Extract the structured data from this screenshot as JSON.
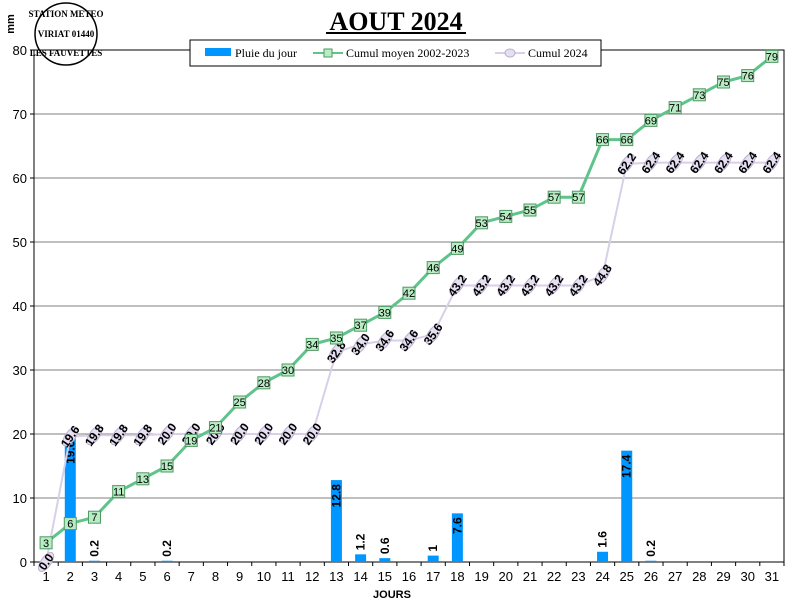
{
  "logo": {
    "line_top": "STATION METEO",
    "line_mid": "VIRIAT 01440",
    "line_bottom": "LES FAUVETTES"
  },
  "chart_data": {
    "type": "bar",
    "title": "AOUT 2024",
    "xlabel": "JOURS",
    "ylabel": "mm",
    "ylim": [
      0,
      80
    ],
    "yticks": [
      0,
      10,
      20,
      30,
      40,
      50,
      60,
      70,
      80
    ],
    "grid": true,
    "legend_position": "top",
    "categories": [
      "1",
      "2",
      "3",
      "4",
      "5",
      "6",
      "7",
      "8",
      "9",
      "10",
      "11",
      "12",
      "13",
      "14",
      "15",
      "16",
      "17",
      "18",
      "19",
      "20",
      "21",
      "22",
      "23",
      "24",
      "25",
      "26",
      "27",
      "28",
      "29",
      "30",
      "31"
    ],
    "series": [
      {
        "name": "Pluie du jour",
        "type": "bar",
        "color": "#0096ff",
        "values": [
          0,
          19.6,
          0.2,
          0,
          0,
          0.2,
          0,
          0,
          0,
          0,
          0,
          0,
          12.8,
          1.2,
          0.6,
          0,
          1,
          7.6,
          0,
          0,
          0,
          0,
          0,
          1.6,
          17.4,
          0.2,
          0,
          0,
          0,
          0,
          0
        ],
        "labels": [
          "",
          "19.6",
          "0.2",
          "",
          "",
          "0.2",
          "",
          "",
          "",
          "",
          "",
          "",
          "12.8",
          "1.2",
          "0.6",
          "",
          "1",
          "7.6",
          "",
          "",
          "",
          "",
          "",
          "1.6",
          "17.4",
          "0.2",
          "",
          "",
          "",
          "",
          ""
        ]
      },
      {
        "name": "Cumul moyen 2002-2023",
        "type": "line",
        "color": "#5ec48a",
        "values": [
          3,
          6,
          7,
          11,
          13,
          15,
          19,
          21,
          25,
          28,
          30,
          34,
          35,
          37,
          39,
          42,
          46,
          49,
          53,
          54,
          55,
          57,
          57,
          66,
          66,
          69,
          71,
          73,
          75,
          76,
          79
        ],
        "labels": [
          "3",
          "6",
          "7",
          "11",
          "13",
          "15",
          "19",
          "21",
          "25",
          "28",
          "30",
          "34",
          "35",
          "37",
          "39",
          "42",
          "46",
          "49",
          "53",
          "54",
          "55",
          "57",
          "57",
          "66",
          "66",
          "69",
          "71",
          "73",
          "75",
          "76",
          "79"
        ]
      },
      {
        "name": "Cumul 2024",
        "type": "line",
        "color": "#d8cfe8",
        "values": [
          0,
          19.6,
          19.8,
          19.8,
          19.8,
          20,
          20,
          20,
          20,
          20,
          20,
          20,
          32.8,
          34,
          34.6,
          34.6,
          35.6,
          43.2,
          43.2,
          43.2,
          43.2,
          43.2,
          43.2,
          44.8,
          62.2,
          62.4,
          62.4,
          62.4,
          62.4,
          62.4,
          62.4
        ],
        "labels": [
          "0.0",
          "19.6",
          "19.8",
          "19.8",
          "19.8",
          "20.0",
          "20.0",
          "20.0",
          "20.0",
          "20.0",
          "20.0",
          "20.0",
          "32.8",
          "34.0",
          "34.6",
          "34.6",
          "35.6",
          "43.2",
          "43.2",
          "43.2",
          "43.2",
          "43.2",
          "43.2",
          "44.8",
          "62.2",
          "62.4",
          "62.4",
          "62.4",
          "62.4",
          "62.4",
          "62.4"
        ]
      }
    ]
  }
}
